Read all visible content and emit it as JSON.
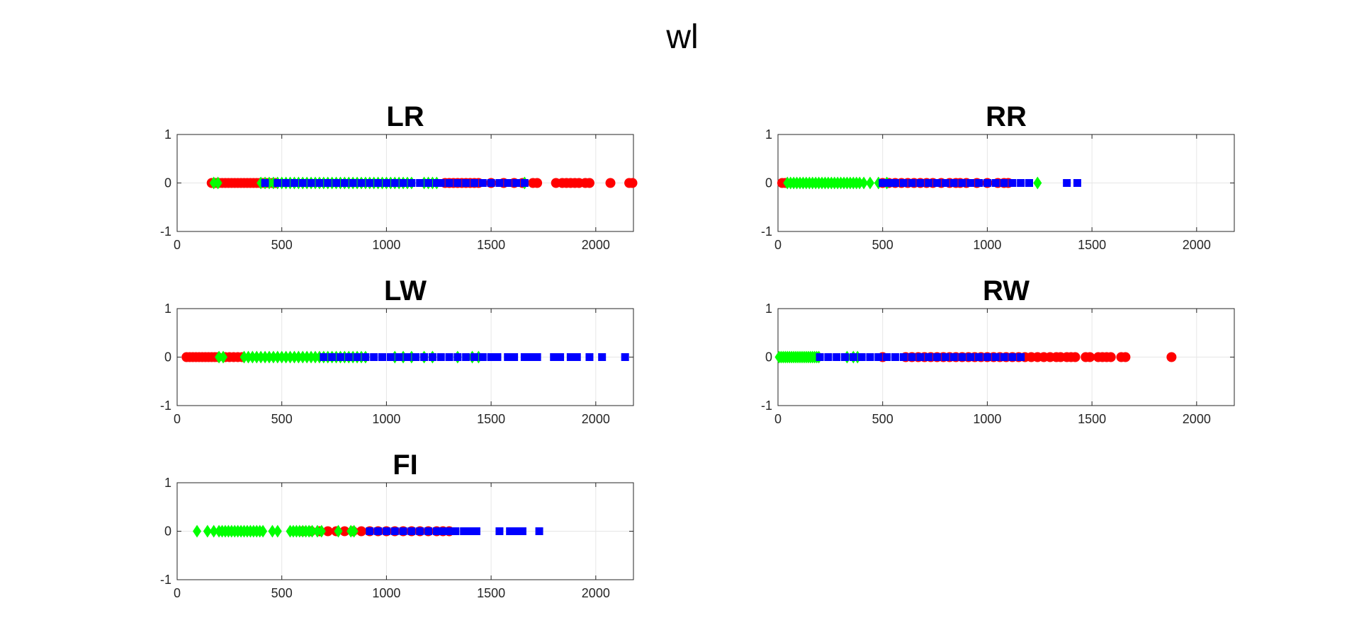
{
  "figure_title": "wl",
  "colors": {
    "series_red": "#ff0000",
    "series_green": "#00ff00",
    "series_blue": "#0000ff"
  },
  "chart_data": [
    {
      "type": "scatter",
      "title": "LR",
      "xlim": [
        0,
        2180
      ],
      "ylim": [
        -1,
        1
      ],
      "xticks": [
        0,
        500,
        1000,
        1500,
        2000
      ],
      "yticks": [
        1,
        0,
        -1
      ],
      "grid": true,
      "series": [
        {
          "color": "#ff0000",
          "marker": "circle",
          "y": 0,
          "x": [
            165,
            185,
            200,
            215,
            230,
            245,
            260,
            275,
            290,
            305,
            320,
            335,
            350,
            365,
            380,
            395,
            410,
            425,
            440,
            455,
            470,
            1280,
            1300,
            1320,
            1340,
            1360,
            1380,
            1400,
            1420,
            1440,
            1500,
            1560,
            1610,
            1650,
            1700,
            1720,
            1810,
            1840,
            1860,
            1880,
            1900,
            1920,
            1950,
            1970,
            2070,
            2160,
            2175
          ]
        },
        {
          "color": "#00ff00",
          "marker": "diamond",
          "y": 0,
          "x": [
            175,
            195,
            400,
            420,
            440,
            460,
            480,
            500,
            520,
            540,
            560,
            580,
            600,
            620,
            640,
            660,
            680,
            700,
            720,
            740,
            760,
            780,
            800,
            820,
            840,
            860,
            880,
            900,
            920,
            940,
            960,
            980,
            1000,
            1020,
            1040,
            1060,
            1080,
            1100,
            1120,
            1180,
            1200,
            1220,
            1240,
            1660
          ]
        },
        {
          "color": "#0000ff",
          "marker": "square",
          "y": 0,
          "x": [
            420,
            480,
            520,
            560,
            600,
            640,
            680,
            720,
            760,
            800,
            840,
            880,
            920,
            960,
            1000,
            1040,
            1080,
            1120,
            1160,
            1200,
            1240,
            1260,
            1300,
            1340,
            1380,
            1420,
            1460,
            1500,
            1540,
            1580,
            1620,
            1660
          ]
        }
      ]
    },
    {
      "type": "scatter",
      "title": "RR",
      "xlim": [
        0,
        2180
      ],
      "ylim": [
        -1,
        1
      ],
      "xticks": [
        0,
        500,
        1000,
        1500,
        2000
      ],
      "yticks": [
        1,
        0,
        -1
      ],
      "grid": true,
      "series": [
        {
          "color": "#ff0000",
          "marker": "circle",
          "y": 0,
          "x": [
            20,
            35,
            500,
            530,
            560,
            590,
            620,
            650,
            680,
            710,
            740,
            780,
            820,
            850,
            870,
            900,
            950,
            1000,
            1050,
            1080,
            1100
          ]
        },
        {
          "color": "#00ff00",
          "marker": "diamond",
          "y": 0,
          "x": [
            45,
            60,
            75,
            90,
            105,
            120,
            135,
            150,
            165,
            180,
            195,
            210,
            225,
            240,
            255,
            270,
            285,
            300,
            315,
            330,
            345,
            360,
            375,
            390,
            410,
            440,
            480,
            520,
            1240
          ]
        },
        {
          "color": "#0000ff",
          "marker": "square",
          "y": 0,
          "x": [
            500,
            530,
            560,
            600,
            640,
            680,
            720,
            760,
            800,
            840,
            880,
            920,
            960,
            1000,
            1040,
            1080,
            1120,
            1160,
            1200,
            1380,
            1430
          ]
        }
      ]
    },
    {
      "type": "scatter",
      "title": "LW",
      "xlim": [
        0,
        2180
      ],
      "ylim": [
        -1,
        1
      ],
      "xticks": [
        0,
        500,
        1000,
        1500,
        2000
      ],
      "yticks": [
        1,
        0,
        -1
      ],
      "grid": true,
      "series": [
        {
          "color": "#ff0000",
          "marker": "circle",
          "y": 0,
          "x": [
            45,
            60,
            75,
            90,
            105,
            120,
            135,
            150,
            165,
            180,
            195,
            230,
            250,
            270,
            290,
            310
          ]
        },
        {
          "color": "#00ff00",
          "marker": "diamond",
          "y": 0,
          "x": [
            200,
            220,
            320,
            340,
            360,
            380,
            400,
            420,
            440,
            460,
            480,
            500,
            520,
            540,
            560,
            580,
            600,
            620,
            640,
            660,
            680,
            700,
            720,
            740,
            760,
            780,
            800,
            820,
            840,
            860,
            880,
            900,
            1040,
            1080,
            1120,
            1180,
            1220,
            1340,
            1410,
            1440
          ]
        },
        {
          "color": "#0000ff",
          "marker": "square",
          "y": 0,
          "x": [
            700,
            740,
            780,
            820,
            860,
            900,
            940,
            980,
            1020,
            1060,
            1100,
            1140,
            1180,
            1220,
            1260,
            1300,
            1340,
            1380,
            1420,
            1460,
            1500,
            1530,
            1580,
            1610,
            1660,
            1690,
            1720,
            1800,
            1830,
            1880,
            1910,
            1970,
            2030,
            2140
          ]
        }
      ]
    },
    {
      "type": "scatter",
      "title": "RW",
      "xlim": [
        0,
        2180
      ],
      "ylim": [
        -1,
        1
      ],
      "xticks": [
        0,
        500,
        1000,
        1500,
        2000
      ],
      "yticks": [
        1,
        0,
        -1
      ],
      "grid": true,
      "series": [
        {
          "color": "#ff0000",
          "marker": "circle",
          "y": 0,
          "x": [
            500,
            610,
            640,
            670,
            700,
            730,
            760,
            790,
            820,
            850,
            880,
            910,
            940,
            970,
            1000,
            1030,
            1060,
            1090,
            1120,
            1150,
            1180,
            1210,
            1240,
            1270,
            1300,
            1330,
            1350,
            1380,
            1400,
            1420,
            1470,
            1490,
            1530,
            1550,
            1570,
            1590,
            1640,
            1660,
            1880
          ]
        },
        {
          "color": "#00ff00",
          "marker": "diamond",
          "y": 0,
          "x": [
            5,
            15,
            25,
            35,
            45,
            55,
            65,
            75,
            85,
            95,
            105,
            115,
            125,
            135,
            145,
            155,
            165,
            175,
            185,
            195,
            330,
            360,
            380
          ]
        },
        {
          "color": "#0000ff",
          "marker": "square",
          "y": 0,
          "x": [
            200,
            240,
            280,
            320,
            360,
            400,
            440,
            480,
            520,
            560,
            600,
            640,
            680,
            720,
            760,
            800,
            840,
            880,
            920,
            960,
            1000,
            1040,
            1080,
            1120,
            1160
          ]
        }
      ]
    },
    {
      "type": "scatter",
      "title": "FI",
      "xlim": [
        0,
        2180
      ],
      "ylim": [
        -1,
        1
      ],
      "xticks": [
        0,
        500,
        1000,
        1500,
        2000
      ],
      "yticks": [
        1,
        0,
        -1
      ],
      "grid": true,
      "series": [
        {
          "color": "#ff0000",
          "marker": "circle",
          "y": 0,
          "x": [
            600,
            640,
            680,
            720,
            760,
            800,
            840,
            880,
            920,
            960,
            1000,
            1040,
            1080,
            1120,
            1160,
            1200,
            1240,
            1270,
            1300
          ]
        },
        {
          "color": "#00ff00",
          "marker": "diamond",
          "y": 0,
          "x": [
            95,
            145,
            175,
            200,
            215,
            230,
            245,
            260,
            275,
            290,
            305,
            320,
            335,
            350,
            365,
            380,
            395,
            410,
            455,
            480,
            540,
            555,
            570,
            585,
            600,
            615,
            630,
            645,
            670,
            690,
            770,
            830,
            845
          ]
        },
        {
          "color": "#0000ff",
          "marker": "square",
          "y": 0,
          "x": [
            920,
            960,
            1000,
            1040,
            1080,
            1120,
            1160,
            1200,
            1240,
            1270,
            1300,
            1330,
            1370,
            1400,
            1430,
            1540,
            1590,
            1620,
            1650,
            1730
          ]
        }
      ]
    }
  ]
}
